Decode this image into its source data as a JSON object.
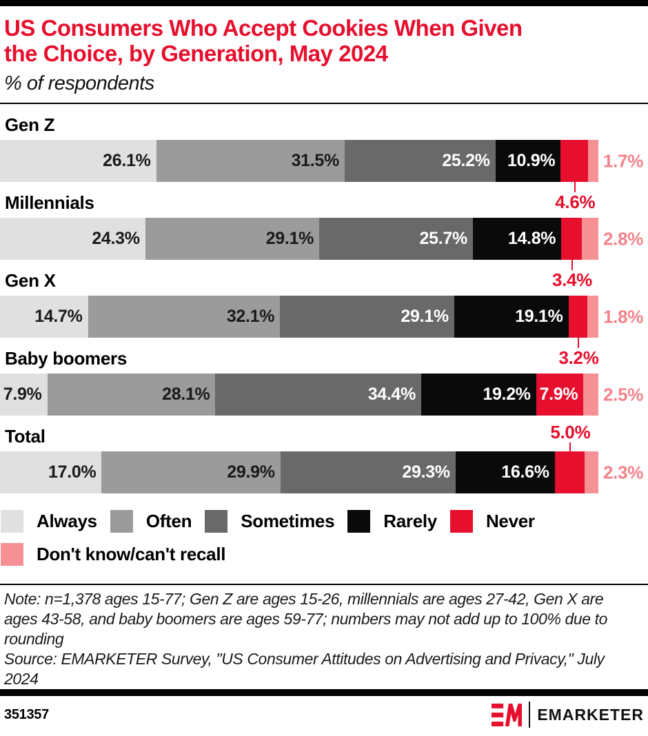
{
  "header": {
    "title_line1": "US Consumers Who Accept Cookies When Given",
    "title_line2": "the Choice, by Generation, May 2024",
    "subtitle": "% of respondents"
  },
  "chart_data": {
    "type": "bar",
    "variant": "horizontal-stacked",
    "unit": "% of respondents",
    "categories": [
      "Gen Z",
      "Millennials",
      "Gen X",
      "Baby boomers",
      "Total"
    ],
    "series_names": [
      "Always",
      "Often",
      "Sometimes",
      "Rarely",
      "Never",
      "Don't know/can't recall"
    ],
    "rows": [
      {
        "label": "Gen Z",
        "values": [
          26.1,
          31.5,
          25.2,
          10.9,
          4.6,
          1.7
        ],
        "value_labels": [
          "26.1%",
          "31.5%",
          "25.2%",
          "10.9%",
          "4.6%",
          "1.7%"
        ],
        "never_label_position": "below"
      },
      {
        "label": "Millennials",
        "values": [
          24.3,
          29.1,
          25.7,
          14.8,
          3.4,
          2.8
        ],
        "value_labels": [
          "24.3%",
          "29.1%",
          "25.7%",
          "14.8%",
          "3.4%",
          "2.8%"
        ],
        "never_label_position": "below"
      },
      {
        "label": "Gen X",
        "values": [
          14.7,
          32.1,
          29.1,
          19.1,
          3.2,
          1.8
        ],
        "value_labels": [
          "14.7%",
          "32.1%",
          "29.1%",
          "19.1%",
          "3.2%",
          "1.8%"
        ],
        "never_label_position": "below"
      },
      {
        "label": "Baby boomers",
        "values": [
          7.9,
          28.1,
          34.4,
          19.2,
          7.9,
          2.5
        ],
        "value_labels": [
          "7.9%",
          "28.1%",
          "34.4%",
          "19.2%",
          "7.9%",
          "2.5%"
        ],
        "never_label_position": "inside"
      },
      {
        "label": "Total",
        "values": [
          17.0,
          29.9,
          29.3,
          16.6,
          5.0,
          2.3
        ],
        "value_labels": [
          "17.0%",
          "29.9%",
          "29.3%",
          "16.6%",
          "5.0%",
          "2.3%"
        ],
        "never_label_position": "above"
      }
    ],
    "colors": {
      "Always": "#e0e0e0",
      "Often": "#9b9b9b",
      "Sometimes": "#696969",
      "Rarely": "#0a0a0a",
      "Never": "#e60f2d",
      "Don't know/can't recall": "#f59094"
    },
    "segment_text_colors": [
      "dark",
      "dark",
      "light",
      "light",
      "light",
      "light"
    ],
    "legend_position": "bottom",
    "axis": {
      "x_range": [
        0,
        100
      ],
      "gridlines": false
    }
  },
  "legend": {
    "rows": [
      [
        {
          "label": "Always",
          "color": "#e0e0e0"
        },
        {
          "label": "Often",
          "color": "#9b9b9b"
        },
        {
          "label": "Sometimes",
          "color": "#696969"
        },
        {
          "label": "Rarely",
          "color": "#0a0a0a"
        },
        {
          "label": "Never",
          "color": "#e60f2d"
        }
      ],
      [
        {
          "label": "Don't know/can't recall",
          "color": "#f59094"
        }
      ]
    ]
  },
  "notes": {
    "note": "Note: n=1,378 ages 15-77; Gen Z are ages 15-26, millennials are ages 27-42, Gen X are ages 43-58, and baby boomers are ages 59-77; numbers may not add up to 100% due to rounding",
    "source": "Source: EMARKETER Survey, \"US Consumer Attitudes on Advertising and Privacy,\" July 2024"
  },
  "footer": {
    "chart_id": "351357",
    "brand_name": "EMARKETER",
    "brand_red": "#e60f2d"
  }
}
